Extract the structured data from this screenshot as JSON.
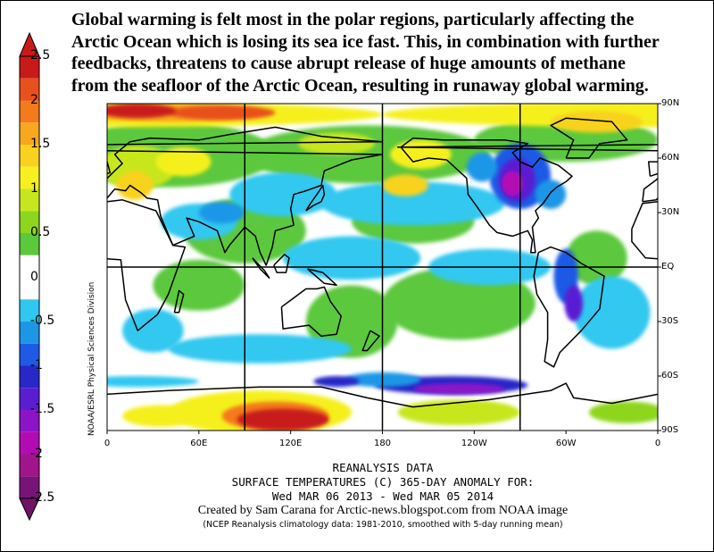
{
  "headline": "Global warming is felt most in the polar regions, particularly affecting the\nArctic Ocean which is losing its sea ice fast. This, in combination with further\nfeedbacks, threatens to cause abrupt release of huge amounts of methane\nfrom the seafloor of the Arctic Ocean, resulting in runaway global warming.",
  "colorbar": {
    "labels": [
      "2.5",
      "2",
      "1.5",
      "1",
      "0.5",
      "0",
      "-0.5",
      "-1",
      "-1.5",
      "-2",
      "-2.5"
    ],
    "bands": [
      {
        "min": 2.25,
        "color": "#c81a1a"
      },
      {
        "min": 2.0,
        "color": "#e8501e"
      },
      {
        "min": 1.75,
        "color": "#f47a1c"
      },
      {
        "min": 1.5,
        "color": "#f8a71e"
      },
      {
        "min": 1.25,
        "color": "#f8d21e"
      },
      {
        "min": 1.0,
        "color": "#f5f01e"
      },
      {
        "min": 0.75,
        "color": "#c8e61e"
      },
      {
        "min": 0.5,
        "color": "#8ed61e"
      },
      {
        "min": 0.25,
        "color": "#5cc83c"
      },
      {
        "min": -0.25,
        "color": "#ffffff"
      },
      {
        "min": -0.5,
        "color": "#30c8f0"
      },
      {
        "min": -0.75,
        "color": "#1e96e6"
      },
      {
        "min": -1.0,
        "color": "#1e5ae6"
      },
      {
        "min": -1.25,
        "color": "#2828c8"
      },
      {
        "min": -1.5,
        "color": "#5a1ed2"
      },
      {
        "min": -1.75,
        "color": "#8c14c8"
      },
      {
        "min": -2.0,
        "color": "#b40ab4"
      },
      {
        "min": -2.25,
        "color": "#a0148c"
      },
      {
        "min": -2.5,
        "color": "#781478"
      }
    ],
    "top_arrow_color": "#c81a1a",
    "bottom_arrow_color": "#6e1464"
  },
  "map": {
    "lat_labels": [
      "90N",
      "60N",
      "30N",
      "EQ",
      "30S",
      "60S",
      "90S"
    ],
    "lon_labels": [
      "0",
      "60E",
      "120E",
      "180",
      "120W",
      "60W",
      "0"
    ],
    "side_credit": "NOAA/ESRL Physical Sciences Division",
    "grid_color": "#000000",
    "coast_color": "#000000"
  },
  "captions": {
    "line1": "REANALYSIS DATA",
    "line2": "SURFACE TEMPERATURES (C)    365-DAY ANOMALY FOR:",
    "line3": "Wed MAR 06 2013 - Wed MAR 05 2014",
    "line4": "Created by Sam Carana for Arctic-news.blogspot.com from NOAA image",
    "line5": "(NCEP Reanalysis climatology data: 1981-2010, smoothed with 5-day running mean)"
  }
}
